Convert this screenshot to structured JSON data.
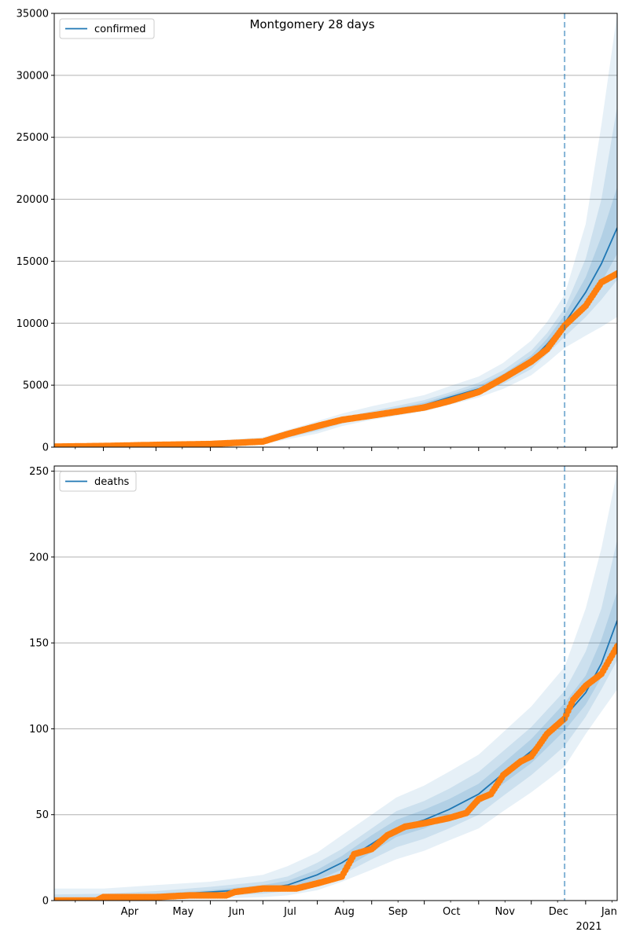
{
  "figure": {
    "title": "Montgomery 28 days"
  },
  "colors": {
    "model_line": "#1f77b4",
    "observed": "#ff7f0e",
    "band": "#1f77b4",
    "forecast_line": "#1f77b4",
    "grid": "#b0b0b0"
  },
  "x_axis": {
    "type": "date",
    "range": [
      "2020-03-04",
      "2021-01-19"
    ],
    "month_ticks": [
      {
        "label": "Apr",
        "date": "2020-04-01"
      },
      {
        "label": "May",
        "date": "2020-05-01"
      },
      {
        "label": "Jun",
        "date": "2020-06-01"
      },
      {
        "label": "Jul",
        "date": "2020-07-01"
      },
      {
        "label": "Aug",
        "date": "2020-08-01"
      },
      {
        "label": "Sep",
        "date": "2020-09-01"
      },
      {
        "label": "Oct",
        "date": "2020-10-01"
      },
      {
        "label": "Nov",
        "date": "2020-11-01"
      },
      {
        "label": "Dec",
        "date": "2020-12-01"
      },
      {
        "label": "Jan",
        "date": "2021-01-01"
      }
    ],
    "year_label": "2021",
    "forecast_start": "2020-12-20"
  },
  "chart_data": [
    {
      "type": "line",
      "legend": "confirmed",
      "legend_position": "top-left",
      "grid": true,
      "ylim": [
        0,
        35000
      ],
      "yticks": [
        "0",
        "5000",
        "10000",
        "15000",
        "20000",
        "25000",
        "30000",
        "35000"
      ],
      "model": {
        "x": [
          "2020-03-04",
          "2020-04-01",
          "2020-05-01",
          "2020-06-01",
          "2020-07-01",
          "2020-08-01",
          "2020-08-15",
          "2020-09-01",
          "2020-10-01",
          "2020-10-15",
          "2020-11-01",
          "2020-11-15",
          "2020-12-01",
          "2020-12-10",
          "2020-12-20",
          "2021-01-01",
          "2021-01-10",
          "2021-01-19"
        ],
        "y": [
          50,
          80,
          150,
          250,
          400,
          1500,
          2100,
          2600,
          3400,
          4000,
          4700,
          5600,
          7000,
          8300,
          10000,
          12500,
          14800,
          17700
        ],
        "bands": [
          {
            "lower": [
              10,
              30,
              80,
              150,
              250,
              1100,
              1700,
              2200,
              2900,
              3400,
              4000,
              4700,
              5800,
              6800,
              8000,
              9000,
              9700,
              10500
            ],
            "upper": [
              200,
              250,
              350,
              500,
              800,
              2100,
              2700,
              3300,
              4200,
              4900,
              5700,
              6800,
              8600,
              10100,
              12300,
              18000,
              26000,
              35000
            ]
          },
          {
            "lower": [
              20,
              50,
              110,
              200,
              320,
              1300,
              1900,
              2400,
              3100,
              3700,
              4300,
              5100,
              6300,
              7500,
              8900,
              10500,
              11900,
              13500
            ],
            "upper": [
              120,
              150,
              230,
              350,
              600,
              1800,
              2400,
              2900,
              3800,
              4400,
              5200,
              6200,
              7800,
              9200,
              11200,
              15200,
              20000,
              27500
            ]
          },
          {
            "lower": [
              35,
              65,
              130,
              230,
              370,
              1400,
              2000,
              2500,
              3250,
              3850,
              4500,
              5350,
              6650,
              7900,
              9450,
              11500,
              13300,
              15600
            ],
            "upper": [
              80,
              110,
              180,
              290,
              480,
              1650,
              2250,
              2750,
              3600,
              4200,
              4950,
              5900,
              7400,
              8750,
              10650,
              13700,
              17000,
              21000
            ]
          }
        ]
      },
      "observed": {
        "x": [
          "2020-03-04",
          "2020-04-01",
          "2020-05-01",
          "2020-06-01",
          "2020-07-01",
          "2020-07-15",
          "2020-08-01",
          "2020-08-15",
          "2020-09-01",
          "2020-10-01",
          "2020-10-15",
          "2020-11-01",
          "2020-11-15",
          "2020-12-01",
          "2020-12-10",
          "2020-12-20",
          "2021-01-01",
          "2021-01-10",
          "2021-01-19"
        ],
        "y": [
          40,
          90,
          180,
          250,
          450,
          1050,
          1700,
          2200,
          2550,
          3200,
          3700,
          4450,
          5550,
          6900,
          7900,
          9800,
          11400,
          13300,
          14000
        ]
      }
    },
    {
      "type": "line",
      "legend": "deaths",
      "legend_position": "top-left",
      "grid": true,
      "ylim": [
        0,
        253
      ],
      "yticks": [
        "0",
        "50",
        "100",
        "150",
        "200",
        "250"
      ],
      "model": {
        "x": [
          "2020-03-04",
          "2020-04-01",
          "2020-05-01",
          "2020-06-01",
          "2020-07-01",
          "2020-07-15",
          "2020-08-01",
          "2020-08-15",
          "2020-09-01",
          "2020-09-15",
          "2020-10-01",
          "2020-10-15",
          "2020-11-01",
          "2020-11-15",
          "2020-12-01",
          "2020-12-10",
          "2020-12-20",
          "2021-01-01",
          "2021-01-10",
          "2021-01-19"
        ],
        "y": [
          0.5,
          1.5,
          3,
          5,
          7,
          9,
          15,
          22,
          33,
          42,
          47,
          53,
          62,
          74,
          87,
          97,
          107,
          121,
          138,
          163
        ],
        "bands": [
          {
            "lower": [
              0,
              0,
              0.5,
              1,
              2,
              3,
              6,
              11,
              18,
              24,
              29,
              35,
              42,
              52,
              63,
              70,
              78,
              97,
              110,
              123
            ],
            "upper": [
              7,
              7,
              9,
              11,
              15,
              20,
              28,
              38,
              50,
              60,
              67,
              75,
              85,
              98,
              113,
              124,
              136,
              170,
              205,
              250
            ]
          },
          {
            "lower": [
              0,
              0.5,
              1.5,
              2.5,
              4,
              5.5,
              9,
              15,
              24,
              31,
              36,
              42,
              50,
              61,
              73,
              81,
              90,
              107,
              123,
              140
            ],
            "upper": [
              3.5,
              4,
              5.5,
              8,
              11,
              14,
              22,
              30,
              42,
              52,
              58,
              65,
              75,
              87,
              101,
              111,
              122,
              145,
              170,
              210
            ]
          },
          {
            "lower": [
              0.3,
              1,
              2.2,
              3.8,
              5.5,
              7.2,
              12,
              18,
              28,
              37,
              42,
              48,
              56,
              68,
              80,
              89,
              99,
              114,
              130,
              150
            ],
            "upper": [
              1,
              2,
              4,
              6,
              9,
              11.5,
              18,
              26,
              38,
              47,
              53,
              59,
              68,
              80,
              94,
              104,
              115,
              131,
              152,
              180
            ]
          }
        ]
      },
      "observed": {
        "x": [
          "2020-03-04",
          "2020-03-28",
          "2020-04-01",
          "2020-05-01",
          "2020-05-20",
          "2020-06-01",
          "2020-06-10",
          "2020-06-15",
          "2020-07-01",
          "2020-07-20",
          "2020-08-01",
          "2020-08-15",
          "2020-08-22",
          "2020-09-01",
          "2020-09-10",
          "2020-09-20",
          "2020-10-01",
          "2020-10-15",
          "2020-10-25",
          "2020-11-01",
          "2020-11-08",
          "2020-11-15",
          "2020-11-25",
          "2020-12-01",
          "2020-12-10",
          "2020-12-20",
          "2020-12-25",
          "2021-01-01",
          "2021-01-10",
          "2021-01-19"
        ],
        "y": [
          0,
          0,
          2,
          2,
          3,
          3,
          3,
          5,
          7,
          7,
          10,
          14,
          27,
          30,
          38,
          43,
          45,
          48,
          51,
          59,
          62,
          73,
          81,
          84,
          97,
          106,
          117,
          125,
          132,
          148
        ]
      }
    }
  ]
}
